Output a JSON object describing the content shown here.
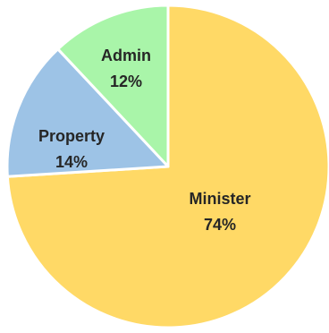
{
  "chart_data": {
    "type": "pie",
    "title": "",
    "start_angle_deg": 0,
    "direction": "clockwise",
    "slices": [
      {
        "name": "Minister",
        "value": 74,
        "percent_label": "74%",
        "color": "#FFD966"
      },
      {
        "name": "Property",
        "value": 14,
        "percent_label": "14%",
        "color": "#9DC3E6"
      },
      {
        "name": "Admin",
        "value": 12,
        "percent_label": "12%",
        "color": "#A9F5A9"
      }
    ],
    "slice_border_color": "#ffffff",
    "legend": "none"
  }
}
